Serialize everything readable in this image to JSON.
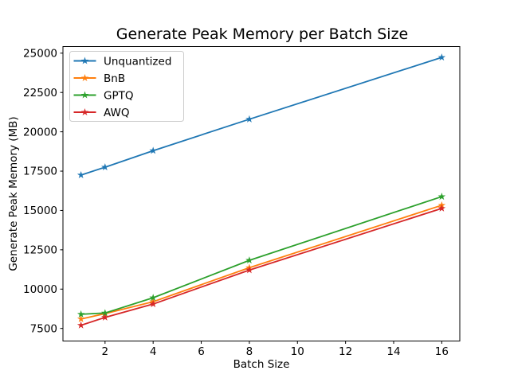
{
  "figure": {
    "background": "#ffffff",
    "axes_edge_color": "#000000",
    "legend_border_color": "#cccccc",
    "legend_background": "#ffffff"
  },
  "chart_data": {
    "type": "line",
    "title": "Generate Peak Memory per Batch Size",
    "xlabel": "Batch Size",
    "ylabel": "Generate Peak Memory (MB)",
    "x": [
      1,
      2,
      4,
      8,
      16
    ],
    "series": [
      {
        "name": "Unquantized",
        "color": "#1f77b4",
        "values": [
          17250,
          17750,
          18800,
          20800,
          24730
        ]
      },
      {
        "name": "BnB",
        "color": "#ff7f0e",
        "values": [
          8100,
          8440,
          9200,
          11360,
          15330
        ]
      },
      {
        "name": "GPTQ",
        "color": "#2ca02c",
        "values": [
          8400,
          8480,
          9450,
          11830,
          15880
        ]
      },
      {
        "name": "AWQ",
        "color": "#d62728",
        "values": [
          7700,
          8200,
          9050,
          11210,
          15130
        ]
      }
    ],
    "xticks": [
      2,
      4,
      6,
      8,
      10,
      12,
      14,
      16
    ],
    "yticks": [
      7500,
      10000,
      12500,
      15000,
      17500,
      20000,
      22500,
      25000
    ],
    "xlim": [
      0.25,
      16.75
    ],
    "ylim": [
      6700,
      25420
    ],
    "marker": "star",
    "grid": false,
    "legend_position": "upper-left"
  }
}
